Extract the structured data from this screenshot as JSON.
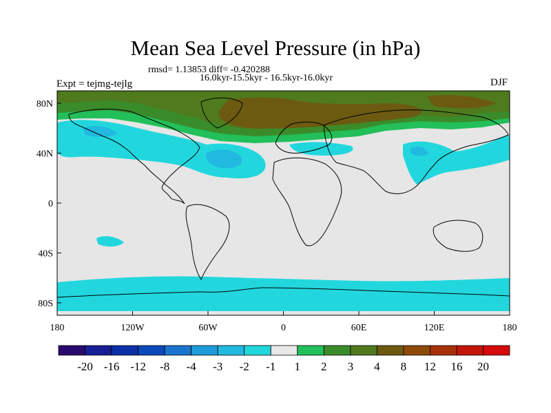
{
  "title": "Mean Sea Level Pressure (in hPa)",
  "stats": "rmsd= 1.13853 diff= -0.420288",
  "period": "16.0kyr-15.5kyr - 16.5kyr-16.0kyr",
  "experiment": "Expt = tejmg-tejlg",
  "season": "DJF",
  "axes": {
    "lat_ticks": [
      "80N",
      "40N",
      "0",
      "40S",
      "80S"
    ],
    "lon_ticks": [
      "180",
      "120W",
      "60W",
      "0",
      "60E",
      "120E",
      "180"
    ]
  },
  "colorbar": {
    "labels": [
      "-20",
      "-16",
      "-12",
      "-8",
      "-4",
      "-3",
      "-2",
      "-1",
      "1",
      "2",
      "3",
      "4",
      "8",
      "12",
      "16",
      "20"
    ],
    "colors": [
      "#2b0a6e",
      "#161f93",
      "#0d2fa8",
      "#0a49b8",
      "#1a74cf",
      "#1e9bd9",
      "#21b9df",
      "#21d7dd",
      "#e8e8e8",
      "#22bf5a",
      "#3a8c2a",
      "#4f7a1e",
      "#6b5a10",
      "#8e4a0a",
      "#a8300a",
      "#c2160a",
      "#d60a0a"
    ]
  },
  "field_colors": {
    "neutral": "#e6e6e6",
    "neg_1_2": "#21d7dd",
    "neg_2_3": "#21b9df",
    "pos_1_2": "#22bf5a",
    "pos_2_3": "#3a8c2a",
    "pos_3_4": "#4f7a1e",
    "pos_4_8": "#6b5a10"
  }
}
